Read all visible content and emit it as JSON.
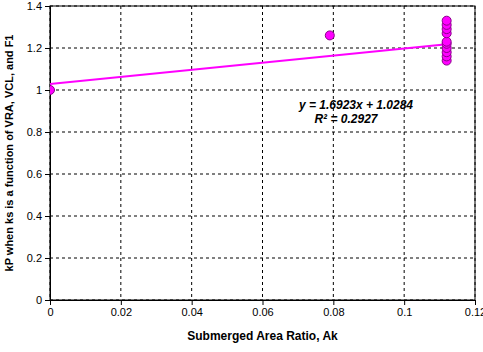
{
  "chart_data": {
    "type": "scatter",
    "x_label": "Submerged Area Ratio, Ak",
    "y_label": "kP when ks is a function of VRA, VCL, and F1",
    "annotations": [
      "y = 1.6923x + 1.0284",
      "R² = 0.2927"
    ],
    "xlim": [
      0,
      0.12
    ],
    "ylim": [
      0,
      1.4
    ],
    "xticks": [
      0,
      0.02,
      0.04,
      0.06,
      0.08,
      0.1,
      0.12
    ],
    "yticks": [
      0,
      0.2,
      0.4,
      0.6,
      0.8,
      1,
      1.2,
      1.4
    ],
    "grid": true,
    "series": [
      {
        "type": "scatter",
        "color": "#ff00ff",
        "marker": "circle",
        "x": [
          0,
          0.079,
          0.112,
          0.112,
          0.112,
          0.112,
          0.112,
          0.112,
          0.112,
          0.112,
          0.112,
          0.112
        ],
        "values": [
          1.0,
          1.26,
          1.14,
          1.16,
          1.18,
          1.2,
          1.22,
          1.23,
          1.27,
          1.29,
          1.31,
          1.33
        ]
      },
      {
        "type": "line",
        "color": "#ff00ff",
        "line_style": "solid",
        "x": [
          0,
          0.112
        ],
        "values": [
          1.0284,
          1.218
        ]
      }
    ]
  }
}
